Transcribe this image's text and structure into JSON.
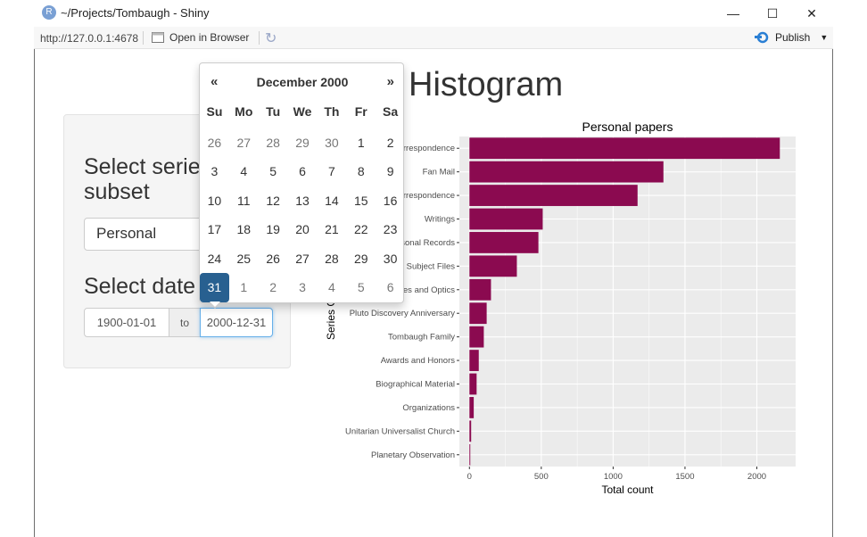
{
  "window": {
    "title": "~/Projects/Tombaugh - Shiny",
    "icon_letter": "R",
    "minimize": "—",
    "maximize": "☐",
    "close": "✕"
  },
  "toolbar": {
    "url": "http://127.0.0.1:4678",
    "open_in_browser": "Open in Browser",
    "publish": "Publish"
  },
  "sidebar": {
    "series_label": "Select series subset",
    "series_value": "Personal",
    "date_label": "Select date",
    "date_start": "1900-01-01",
    "date_to": "to",
    "date_end": "2000-12-31"
  },
  "main": {
    "heading": "Histogram"
  },
  "calendar": {
    "prev": "«",
    "next": "»",
    "month": "December 2000",
    "dow": [
      "Su",
      "Mo",
      "Tu",
      "We",
      "Th",
      "Fr",
      "Sa"
    ],
    "weeks": [
      [
        "26",
        "27",
        "28",
        "29",
        "30",
        "1",
        "2"
      ],
      [
        "3",
        "4",
        "5",
        "6",
        "7",
        "8",
        "9"
      ],
      [
        "10",
        "11",
        "12",
        "13",
        "14",
        "15",
        "16"
      ],
      [
        "17",
        "18",
        "19",
        "20",
        "21",
        "22",
        "23"
      ],
      [
        "24",
        "25",
        "26",
        "27",
        "28",
        "29",
        "30"
      ],
      [
        "31",
        "1",
        "2",
        "3",
        "4",
        "5",
        "6"
      ]
    ],
    "selected": "31"
  },
  "chart_data": {
    "type": "bar",
    "orientation": "horizontal",
    "title": "Personal papers",
    "xlabel": "Total count",
    "ylabel": "Series Category",
    "xlim": [
      -70,
      2270
    ],
    "xticks": [
      0,
      500,
      1000,
      1500,
      2000
    ],
    "color": "#8B0A50",
    "background": "#EBEBEB",
    "categories": [
      "Correspondence",
      "Fan Mail",
      "Correspondence",
      "Writings",
      "Personal Records",
      "Subject Files",
      "Telescopes and Optics",
      "Pluto Discovery Anniversary",
      "Tombaugh Family",
      "Awards and Honors",
      "Biographical Material",
      "Organizations",
      "Unitarian Universalist Church",
      "Planetary Observation"
    ],
    "values": [
      2160,
      1350,
      1170,
      510,
      480,
      330,
      150,
      120,
      100,
      65,
      50,
      30,
      12,
      6
    ]
  }
}
